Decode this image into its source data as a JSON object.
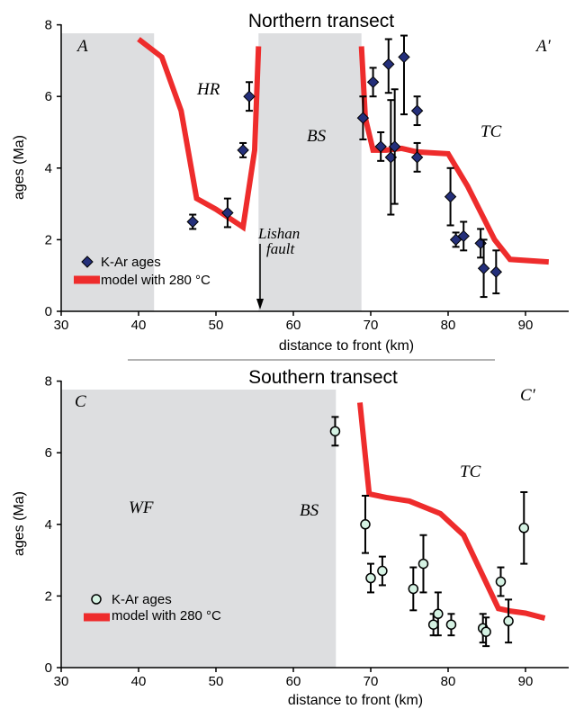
{
  "colors": {
    "model_line": "#ee2c2c",
    "shade": "#dddee0",
    "diamond_fill": "#242f7a",
    "circle_fill": "#d5f2e3",
    "separator": "#b3b3b3"
  },
  "chart_data": [
    {
      "type": "scatter",
      "title": "Northern transect",
      "xlabel": "distance to front (km)",
      "ylabel": "ages (Ma)",
      "xlim": [
        30,
        95
      ],
      "ylim": [
        0,
        8
      ],
      "x_ticks": [
        "30",
        "40",
        "50",
        "60",
        "70",
        "80",
        "90"
      ],
      "y_ticks": [
        "0",
        "2",
        "4",
        "6",
        "8"
      ],
      "shaded_x_ranges": [
        [
          30,
          42
        ],
        [
          55.5,
          68.8
        ]
      ],
      "region_labels": [
        "A",
        "A′",
        "HR",
        "BS",
        "TC"
      ],
      "annotation": {
        "line1": "Lishan",
        "line2": "fault",
        "x": 55
      },
      "legend": {
        "points": "K-Ar ages",
        "line": "model with 280 °C"
      },
      "marker": "diamond",
      "series": [
        {
          "name": "K-Ar ages",
          "points": [
            {
              "x": 47,
              "y": 2.5,
              "lo": 2.3,
              "hi": 2.7
            },
            {
              "x": 51.5,
              "y": 2.75,
              "lo": 2.35,
              "hi": 3.15
            },
            {
              "x": 53.5,
              "y": 4.5,
              "lo": 4.3,
              "hi": 4.7
            },
            {
              "x": 54.3,
              "y": 6.0,
              "lo": 5.6,
              "hi": 6.4
            },
            {
              "x": 69.0,
              "y": 5.4,
              "lo": 4.8,
              "hi": 6.0
            },
            {
              "x": 70.3,
              "y": 6.4,
              "lo": 6.0,
              "hi": 6.8
            },
            {
              "x": 71.3,
              "y": 4.6,
              "lo": 4.2,
              "hi": 5.0
            },
            {
              "x": 72.3,
              "y": 6.9,
              "lo": 6.1,
              "hi": 7.6
            },
            {
              "x": 72.6,
              "y": 4.3,
              "lo": 2.7,
              "hi": 5.9
            },
            {
              "x": 73.1,
              "y": 4.6,
              "lo": 3.0,
              "hi": 6.2
            },
            {
              "x": 74.3,
              "y": 7.1,
              "lo": 5.5,
              "hi": 7.7
            },
            {
              "x": 76.0,
              "y": 5.6,
              "lo": 5.2,
              "hi": 6.0
            },
            {
              "x": 76.0,
              "y": 4.3,
              "lo": 3.9,
              "hi": 4.7
            },
            {
              "x": 80.3,
              "y": 3.2,
              "lo": 2.4,
              "hi": 4.0
            },
            {
              "x": 81.0,
              "y": 2.0,
              "lo": 1.8,
              "hi": 2.2
            },
            {
              "x": 82.0,
              "y": 2.1,
              "lo": 1.7,
              "hi": 2.5
            },
            {
              "x": 84.2,
              "y": 1.9,
              "lo": 1.5,
              "hi": 2.3
            },
            {
              "x": 84.6,
              "y": 1.2,
              "lo": 0.4,
              "hi": 2.0
            },
            {
              "x": 86.2,
              "y": 1.1,
              "lo": 0.5,
              "hi": 1.7
            }
          ]
        },
        {
          "name": "model with 280 °C",
          "segments": [
            [
              [
                40,
                7.6
              ],
              [
                43,
                7.1
              ],
              [
                45.5,
                5.6
              ],
              [
                47.5,
                3.15
              ],
              [
                50,
                2.85
              ],
              [
                53.5,
                2.35
              ],
              [
                55,
                4.5
              ],
              [
                55.5,
                7.4
              ]
            ],
            [
              [
                68.8,
                7.4
              ],
              [
                69.3,
                5.4
              ],
              [
                70.3,
                4.5
              ],
              [
                72,
                4.5
              ],
              [
                74,
                4.55
              ],
              [
                76,
                4.45
              ],
              [
                80,
                4.4
              ],
              [
                82.5,
                3.5
              ],
              [
                86,
                2.0
              ],
              [
                88,
                1.45
              ],
              [
                93,
                1.38
              ]
            ]
          ]
        }
      ]
    },
    {
      "type": "scatter",
      "title": "Southern transect",
      "xlabel": "distance to front (km)",
      "ylabel": "ages (Ma)",
      "xlim": [
        30,
        95
      ],
      "ylim": [
        0,
        8
      ],
      "x_ticks": [
        "30",
        "40",
        "50",
        "60",
        "70",
        "80",
        "90"
      ],
      "y_ticks": [
        "0",
        "2",
        "4",
        "6",
        "8"
      ],
      "shaded_x_ranges": [
        [
          30,
          65.5
        ]
      ],
      "region_labels": [
        "C",
        "C′",
        "WF",
        "BS",
        "TC"
      ],
      "legend": {
        "points": "K-Ar ages",
        "line": "model with 280 °C"
      },
      "marker": "circle",
      "series": [
        {
          "name": "K-Ar ages",
          "points": [
            {
              "x": 65.4,
              "y": 6.6,
              "lo": 6.2,
              "hi": 7.0
            },
            {
              "x": 69.3,
              "y": 4.0,
              "lo": 3.2,
              "hi": 4.8
            },
            {
              "x": 70.0,
              "y": 2.5,
              "lo": 2.1,
              "hi": 2.9
            },
            {
              "x": 71.5,
              "y": 2.7,
              "lo": 2.3,
              "hi": 3.1
            },
            {
              "x": 75.5,
              "y": 2.2,
              "lo": 1.6,
              "hi": 2.8
            },
            {
              "x": 76.8,
              "y": 2.9,
              "lo": 2.1,
              "hi": 3.7
            },
            {
              "x": 78.1,
              "y": 1.2,
              "lo": 0.9,
              "hi": 1.5
            },
            {
              "x": 78.7,
              "y": 1.5,
              "lo": 0.9,
              "hi": 2.1
            },
            {
              "x": 80.4,
              "y": 1.2,
              "lo": 0.9,
              "hi": 1.5
            },
            {
              "x": 84.5,
              "y": 1.1,
              "lo": 0.7,
              "hi": 1.5
            },
            {
              "x": 84.9,
              "y": 1.0,
              "lo": 0.6,
              "hi": 1.4
            },
            {
              "x": 86.8,
              "y": 2.4,
              "lo": 2.0,
              "hi": 2.8
            },
            {
              "x": 87.8,
              "y": 1.3,
              "lo": 0.7,
              "hi": 1.9
            },
            {
              "x": 89.8,
              "y": 3.9,
              "lo": 2.9,
              "hi": 4.9
            }
          ]
        },
        {
          "name": "model with 280 °C",
          "segments": [
            [
              [
                68.6,
                7.4
              ],
              [
                69.8,
                4.85
              ],
              [
                72,
                4.75
              ],
              [
                75,
                4.65
              ],
              [
                79,
                4.3
              ],
              [
                82,
                3.7
              ],
              [
                86.5,
                1.65
              ],
              [
                88,
                1.58
              ],
              [
                90,
                1.52
              ],
              [
                92.5,
                1.38
              ]
            ]
          ]
        }
      ]
    }
  ]
}
